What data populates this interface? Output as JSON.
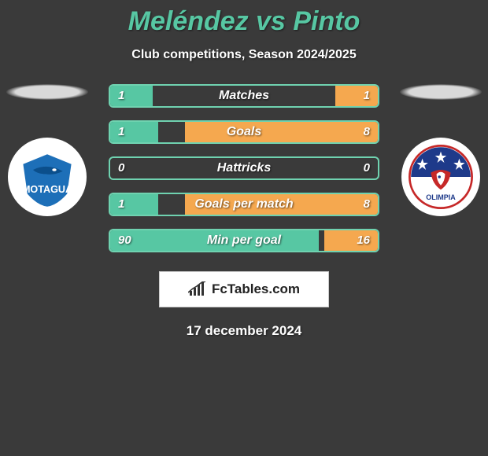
{
  "title": "Meléndez vs Pinto",
  "subtitle": "Club competitions, Season 2024/2025",
  "date": "17 december 2024",
  "brand": "FcTables.com",
  "colors": {
    "left_fill": "#57c7a3",
    "right_fill": "#f5a84f",
    "border": "#6fd2b0",
    "background": "#3a3a3a"
  },
  "stats": [
    {
      "label": "Matches",
      "left_val": "1",
      "right_val": "1",
      "left_pct": 16,
      "right_pct": 16
    },
    {
      "label": "Goals",
      "left_val": "1",
      "right_val": "8",
      "left_pct": 18,
      "right_pct": 72
    },
    {
      "label": "Hattricks",
      "left_val": "0",
      "right_val": "0",
      "left_pct": 0,
      "right_pct": 0
    },
    {
      "label": "Goals per match",
      "left_val": "1",
      "right_val": "8",
      "left_pct": 18,
      "right_pct": 72
    },
    {
      "label": "Min per goal",
      "left_val": "90",
      "right_val": "16",
      "left_pct": 78,
      "right_pct": 20
    }
  ],
  "left_team": {
    "name": "MOTAGUA"
  },
  "right_team": {
    "name": "OLIMPIA"
  }
}
